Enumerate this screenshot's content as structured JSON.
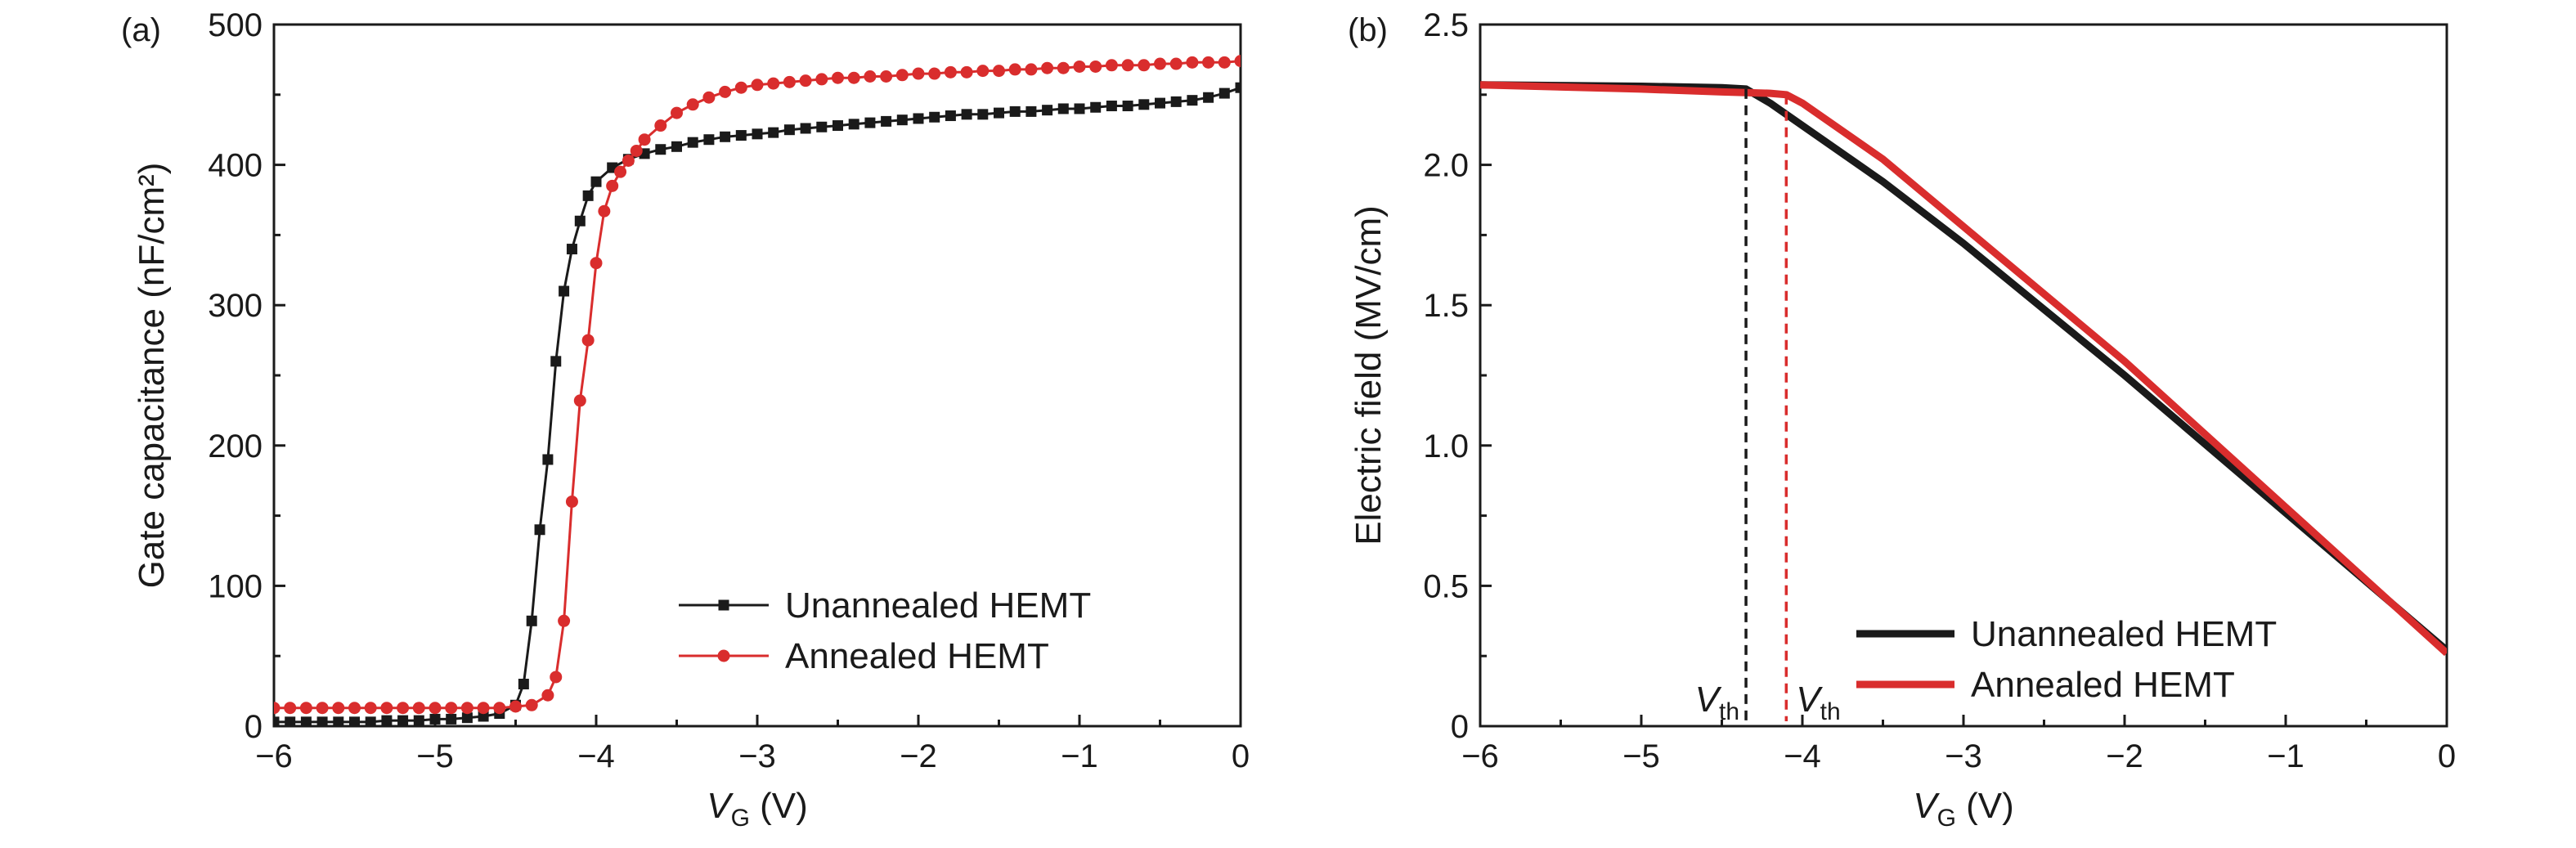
{
  "chart_data": [
    {
      "type": "line",
      "panel_label": "(a)",
      "xlabel": "V",
      "xlabel_sub": "G",
      "xlabel_unit": " (V)",
      "ylabel": "Gate capacitance (nF/cm²)",
      "xlim": [
        -6,
        0
      ],
      "ylim": [
        0,
        500
      ],
      "x_ticks": [
        "−6",
        "−5",
        "−4",
        "−3",
        "−2",
        "−1",
        "0"
      ],
      "y_ticks": [
        "0",
        "100",
        "200",
        "300",
        "400",
        "500"
      ],
      "grid": false,
      "legend_position": "lower-right",
      "series": [
        {
          "name": "Unannealed HEMT",
          "color": "#1a1a1a",
          "marker": "square",
          "x": [
            -6.0,
            -5.9,
            -5.8,
            -5.7,
            -5.6,
            -5.5,
            -5.4,
            -5.3,
            -5.2,
            -5.1,
            -5.0,
            -4.9,
            -4.8,
            -4.7,
            -4.6,
            -4.5,
            -4.45,
            -4.4,
            -4.35,
            -4.3,
            -4.25,
            -4.2,
            -4.15,
            -4.1,
            -4.05,
            -4.0,
            -3.9,
            -3.8,
            -3.7,
            -3.6,
            -3.5,
            -3.4,
            -3.3,
            -3.2,
            -3.1,
            -3.0,
            -2.9,
            -2.8,
            -2.7,
            -2.6,
            -2.5,
            -2.4,
            -2.3,
            -2.2,
            -2.1,
            -2.0,
            -1.9,
            -1.8,
            -1.7,
            -1.6,
            -1.5,
            -1.4,
            -1.3,
            -1.2,
            -1.1,
            -1.0,
            -0.9,
            -0.8,
            -0.7,
            -0.6,
            -0.5,
            -0.4,
            -0.3,
            -0.2,
            -0.1,
            0.0
          ],
          "y": [
            3,
            3,
            3,
            3,
            3,
            3,
            3,
            4,
            4,
            4,
            5,
            5,
            6,
            7,
            9,
            15,
            30,
            75,
            140,
            190,
            260,
            310,
            340,
            360,
            378,
            388,
            398,
            404,
            408,
            411,
            413,
            416,
            418,
            420,
            421,
            422,
            423,
            425,
            426,
            427,
            428,
            429,
            430,
            431,
            432,
            433,
            434,
            435,
            436,
            436,
            437,
            438,
            438,
            439,
            440,
            440,
            441,
            442,
            442,
            443,
            444,
            445,
            446,
            448,
            451,
            455
          ]
        },
        {
          "name": "Annealed HEMT",
          "color": "#d92d2d",
          "marker": "circle",
          "x": [
            -6.0,
            -5.9,
            -5.8,
            -5.7,
            -5.6,
            -5.5,
            -5.4,
            -5.3,
            -5.2,
            -5.1,
            -5.0,
            -4.9,
            -4.8,
            -4.7,
            -4.6,
            -4.5,
            -4.4,
            -4.3,
            -4.25,
            -4.2,
            -4.15,
            -4.1,
            -4.05,
            -4.0,
            -3.95,
            -3.9,
            -3.85,
            -3.8,
            -3.75,
            -3.7,
            -3.6,
            -3.5,
            -3.4,
            -3.3,
            -3.2,
            -3.1,
            -3.0,
            -2.9,
            -2.8,
            -2.7,
            -2.6,
            -2.5,
            -2.4,
            -2.3,
            -2.2,
            -2.1,
            -2.0,
            -1.9,
            -1.8,
            -1.7,
            -1.6,
            -1.5,
            -1.4,
            -1.3,
            -1.2,
            -1.1,
            -1.0,
            -0.9,
            -0.8,
            -0.7,
            -0.6,
            -0.5,
            -0.4,
            -0.3,
            -0.2,
            -0.1,
            0.0
          ],
          "y": [
            13,
            13,
            13,
            13,
            13,
            13,
            13,
            13,
            13,
            13,
            13,
            13,
            13,
            13,
            13,
            14,
            15,
            22,
            35,
            75,
            160,
            232,
            275,
            330,
            367,
            385,
            395,
            403,
            410,
            418,
            428,
            437,
            443,
            448,
            452,
            455,
            457,
            458,
            459,
            460,
            461,
            462,
            462,
            463,
            463,
            464,
            465,
            465,
            466,
            466,
            467,
            467,
            468,
            468,
            469,
            469,
            470,
            470,
            471,
            471,
            471,
            472,
            472,
            473,
            473,
            473,
            474
          ]
        }
      ]
    },
    {
      "type": "line",
      "panel_label": "(b)",
      "xlabel": "V",
      "xlabel_sub": "G",
      "xlabel_unit": " (V)",
      "ylabel": "Electric field (MV/cm)",
      "xlim": [
        -6,
        0
      ],
      "ylim": [
        0,
        2.5
      ],
      "x_ticks": [
        "−6",
        "−5",
        "−4",
        "−3",
        "−2",
        "−1",
        "0"
      ],
      "y_ticks": [
        "0",
        "0.5",
        "1.0",
        "1.5",
        "2.0",
        "2.5"
      ],
      "grid": false,
      "legend_position": "lower-center",
      "series": [
        {
          "name": "Unannealed HEMT",
          "color": "#1a1a1a",
          "x": [
            -6.0,
            -5.0,
            -4.5,
            -4.35,
            -4.2,
            -4.0,
            -3.5,
            -3.0,
            -2.0,
            -1.0,
            0.0
          ],
          "y": [
            2.285,
            2.28,
            2.275,
            2.27,
            2.22,
            2.14,
            1.94,
            1.72,
            1.25,
            0.76,
            0.27
          ]
        },
        {
          "name": "Annealed HEMT",
          "color": "#d92d2d",
          "x": [
            -6.0,
            -5.0,
            -4.5,
            -4.2,
            -4.1,
            -4.0,
            -3.5,
            -3.0,
            -2.0,
            -1.0,
            0.0
          ],
          "y": [
            2.285,
            2.27,
            2.26,
            2.255,
            2.25,
            2.22,
            2.02,
            1.78,
            1.3,
            0.78,
            0.26
          ]
        }
      ],
      "vlines": [
        {
          "x": -4.35,
          "color": "#1a1a1a",
          "label": "V",
          "label_sub": "th"
        },
        {
          "x": -4.1,
          "color": "#d92d2d",
          "label": "V",
          "label_sub": "th"
        }
      ]
    }
  ]
}
